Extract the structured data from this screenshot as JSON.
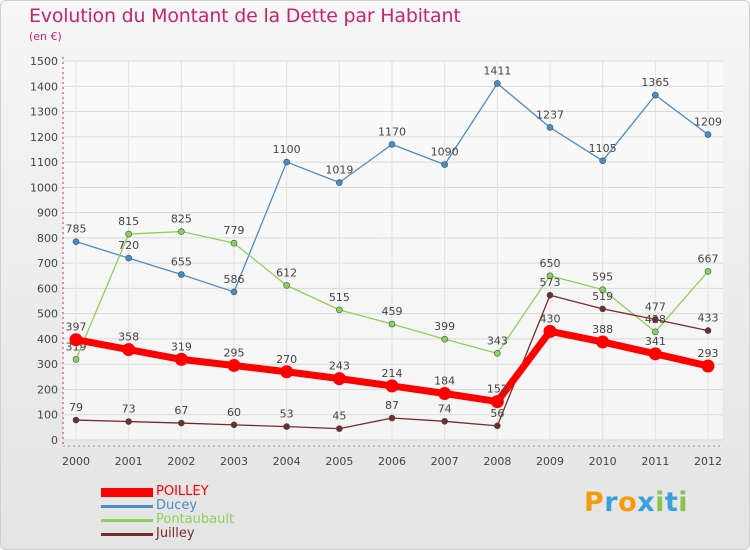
{
  "title": "Evolution du Montant de la Dette par Habitant",
  "unit": "(en €)",
  "brand": {
    "name": "Proxiti",
    "letters": [
      "P",
      "r",
      "o",
      "x",
      "i",
      "t",
      "i"
    ],
    "colors": [
      "#f39c12",
      "#3aa0dc",
      "#f39c12",
      "#3aa0dc",
      "#8bc34a",
      "#3aa0dc",
      "#8bc34a"
    ]
  },
  "chart_data": {
    "type": "line",
    "x": [
      "2000",
      "2001",
      "2002",
      "2003",
      "2004",
      "2005",
      "2006",
      "2007",
      "2008",
      "2009",
      "2010",
      "2011",
      "2012"
    ],
    "ylim": [
      0,
      1500
    ],
    "yticks": [
      0,
      100,
      200,
      300,
      400,
      500,
      600,
      700,
      800,
      900,
      1000,
      1100,
      1200,
      1300,
      1400,
      1500
    ],
    "grid": true,
    "legend_position": "bottom-left",
    "series": [
      {
        "name": "Ducey",
        "color": "#4a8cc9",
        "values": [
          785,
          720,
          655,
          586,
          1100,
          1019,
          1170,
          1090,
          1411,
          1237,
          1105,
          1365,
          1209
        ]
      },
      {
        "name": "Pontaubault",
        "color": "#8ed05a",
        "values": [
          319,
          815,
          825,
          779,
          612,
          515,
          459,
          399,
          343,
          650,
          595,
          428,
          667
        ]
      },
      {
        "name": "Juilley",
        "color": "#7a2a2a",
        "values": [
          79,
          73,
          67,
          60,
          53,
          45,
          87,
          74,
          56,
          573,
          519,
          477,
          433
        ]
      },
      {
        "name": "POILLEY",
        "color": "#ff0000",
        "values": [
          397,
          358,
          319,
          295,
          270,
          243,
          214,
          184,
          152,
          430,
          388,
          341,
          293
        ]
      }
    ]
  },
  "legend": [
    {
      "name": "POILLEY",
      "color": "#ff0000"
    },
    {
      "name": "Ducey",
      "color": "#4a8cc9"
    },
    {
      "name": "Pontaubault",
      "color": "#8ed05a"
    },
    {
      "name": "Juilley",
      "color": "#7a2a2a"
    }
  ]
}
